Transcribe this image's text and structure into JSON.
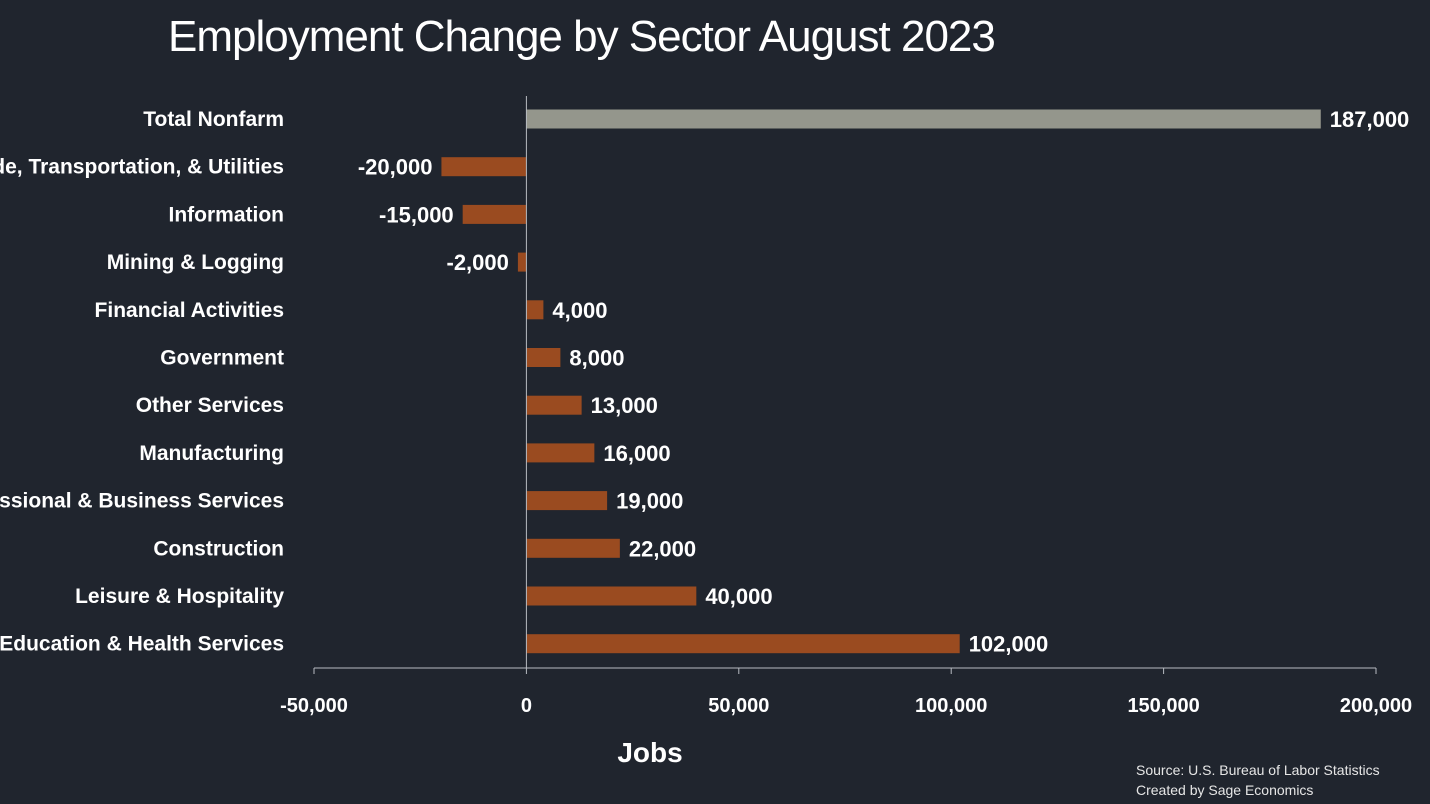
{
  "chart_data": {
    "type": "bar",
    "orientation": "horizontal",
    "title": "Employment Change by Sector August 2023",
    "xlabel": "Jobs",
    "ylabel": "",
    "xlim": [
      -50000,
      200000
    ],
    "x_ticks": [
      -50000,
      0,
      50000,
      100000,
      150000,
      200000
    ],
    "x_tick_labels": [
      "-50,000",
      "0",
      "50,000",
      "100,000",
      "150,000",
      "200,000"
    ],
    "grid": false,
    "categories": [
      "Total Nonfarm",
      "Trade, Transportation, & Utilities",
      "Information",
      "Mining & Logging",
      "Financial Activities",
      "Government",
      "Other Services",
      "Manufacturing",
      "Professional & Business Services",
      "Construction",
      "Leisure & Hospitality",
      "Education & Health Services"
    ],
    "values": [
      187000,
      -20000,
      -15000,
      -2000,
      4000,
      8000,
      13000,
      16000,
      19000,
      22000,
      40000,
      102000
    ],
    "value_labels": [
      "187,000",
      "-20,000",
      "-15,000",
      "-2,000",
      "4,000",
      "8,000",
      "13,000",
      "16,000",
      "19,000",
      "22,000",
      "40,000",
      "102,000"
    ],
    "colors": {
      "total": "#94968c",
      "sector": "#9a4b20",
      "background": "#20252e",
      "axis": "#b8bcc2"
    }
  },
  "footer": {
    "source": "Source: U.S. Bureau of Labor Statistics",
    "credit": "Created by Sage Economics"
  }
}
